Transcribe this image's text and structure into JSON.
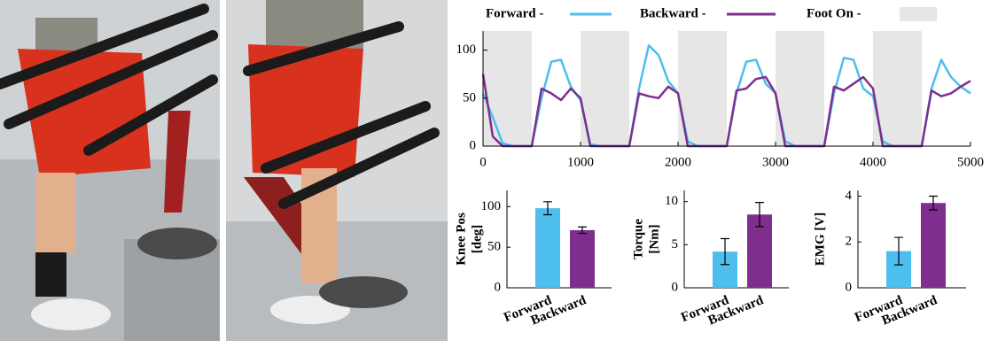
{
  "chart_data": [
    {
      "type": "line",
      "x": [
        0,
        100,
        200,
        300,
        400,
        500,
        600,
        700,
        800,
        900,
        1000,
        1100,
        1200,
        1300,
        1400,
        1500,
        1600,
        1700,
        1800,
        1900,
        2000,
        2100,
        2200,
        2300,
        2400,
        2500,
        2600,
        2700,
        2800,
        2900,
        3000,
        3100,
        3200,
        3300,
        3400,
        3500,
        3600,
        3700,
        3800,
        3900,
        4000,
        4100,
        4200,
        4300,
        4400,
        4500,
        4600,
        4700,
        4800,
        4900,
        5000
      ],
      "series": [
        {
          "name": "Forward -",
          "color": "#4dbeee",
          "values": [
            55,
            30,
            3,
            0,
            0,
            0,
            50,
            88,
            90,
            62,
            48,
            2,
            0,
            0,
            0,
            0,
            60,
            105,
            95,
            68,
            55,
            5,
            0,
            0,
            0,
            0,
            55,
            88,
            90,
            65,
            55,
            5,
            0,
            0,
            0,
            0,
            55,
            92,
            90,
            60,
            52,
            5,
            0,
            0,
            0,
            0,
            60,
            90,
            72,
            62,
            55
          ]
        },
        {
          "name": "Backward -",
          "color": "#7e2f8e",
          "values": [
            75,
            10,
            0,
            0,
            0,
            0,
            60,
            55,
            48,
            60,
            50,
            0,
            0,
            0,
            0,
            0,
            55,
            52,
            50,
            62,
            55,
            0,
            0,
            0,
            0,
            0,
            58,
            60,
            70,
            72,
            55,
            0,
            0,
            0,
            0,
            0,
            62,
            58,
            65,
            72,
            60,
            0,
            0,
            0,
            0,
            0,
            58,
            52,
            55,
            62,
            68
          ]
        }
      ],
      "shaded": {
        "name": "Foot On -",
        "color": "#e6e6e6",
        "spans": [
          [
            0,
            500
          ],
          [
            1000,
            1500
          ],
          [
            2000,
            2500
          ],
          [
            3000,
            3500
          ],
          [
            4000,
            4500
          ]
        ]
      },
      "xlim": [
        0,
        5000
      ],
      "xticks": [
        0,
        1000,
        2000,
        3000,
        4000,
        5000
      ],
      "ylim": [
        0,
        120
      ],
      "yticks": [
        0,
        50,
        100
      ]
    },
    {
      "type": "bar",
      "ylabel": [
        "Knee Pos",
        "[deg]"
      ],
      "categories": [
        "Forward",
        "Backward"
      ],
      "colors": [
        "#4dbeee",
        "#7e2f8e"
      ],
      "values": [
        98,
        71
      ],
      "errors": [
        8,
        4
      ],
      "ylim": [
        0,
        120
      ],
      "yticks": [
        0,
        50,
        100
      ]
    },
    {
      "type": "bar",
      "ylabel": [
        "Torque",
        "[Nm]"
      ],
      "categories": [
        "Forward",
        "Backward"
      ],
      "colors": [
        "#4dbeee",
        "#7e2f8e"
      ],
      "values": [
        4.2,
        8.5
      ],
      "errors": [
        1.5,
        1.4
      ],
      "ylim": [
        0,
        11.3
      ],
      "yticks": [
        0,
        5,
        10
      ]
    },
    {
      "type": "bar",
      "ylabel": [
        "EMG [V]"
      ],
      "categories": [
        "Forward",
        "Backward"
      ],
      "colors": [
        "#4dbeee",
        "#7e2f8e"
      ],
      "values": [
        1.6,
        3.7
      ],
      "errors": [
        0.6,
        0.3
      ],
      "ylim": [
        0,
        4.25
      ],
      "yticks": [
        0,
        2,
        4
      ]
    }
  ]
}
